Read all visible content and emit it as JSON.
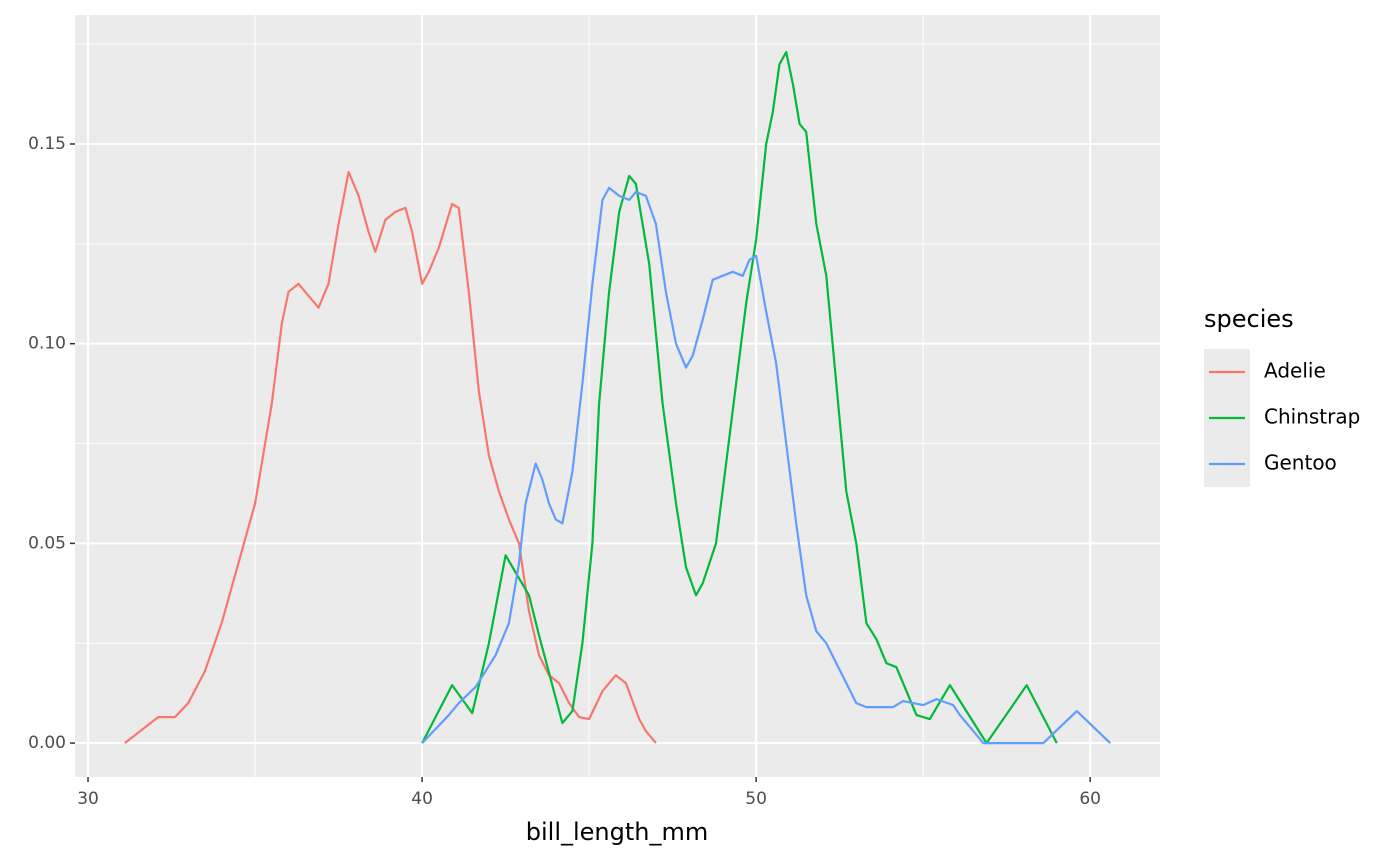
{
  "chart_data": {
    "type": "line",
    "x_label": "bill_length_mm",
    "legend_title": "species",
    "legend_position": "right",
    "grid": true,
    "xlim": [
      29.61,
      62.09
    ],
    "xticks": [
      30,
      40,
      50,
      60
    ],
    "x_minor_ticks": [
      35,
      45,
      55
    ],
    "ylim": [
      -0.0085,
      0.1823
    ],
    "yticks": [
      {
        "value": 0,
        "label": "0.00"
      },
      {
        "value": 0.05,
        "label": "0.05"
      },
      {
        "value": 0.1,
        "label": "0.10"
      },
      {
        "value": 0.15,
        "label": "0.15"
      }
    ],
    "y_minor_ticks": [
      0.025,
      0.075,
      0.125,
      0.175
    ],
    "series": [
      {
        "name": "Adelie",
        "color": "#f8766d",
        "x": [
          31.1,
          32.1,
          32.6,
          33,
          33.5,
          34,
          34.5,
          35,
          35.5,
          35.8,
          36,
          36.3,
          36.6,
          36.9,
          37.2,
          37.5,
          37.8,
          38.1,
          38.4,
          38.6,
          38.9,
          39.2,
          39.5,
          39.7,
          40,
          40.2,
          40.5,
          40.9,
          41.1,
          41.4,
          41.7,
          42,
          42.3,
          42.6,
          42.9,
          43.2,
          43.5,
          43.8,
          44.1,
          44.4,
          44.7,
          45,
          45.4,
          45.8,
          46.1,
          46.5,
          46.7,
          47
        ],
        "values": [
          0,
          0.0065,
          0.0065,
          0.01,
          0.018,
          0.03,
          0.045,
          0.06,
          0.085,
          0.105,
          0.113,
          0.115,
          0.112,
          0.109,
          0.115,
          0.13,
          0.143,
          0.137,
          0.128,
          0.123,
          0.131,
          0.133,
          0.134,
          0.128,
          0.115,
          0.118,
          0.124,
          0.135,
          0.134,
          0.113,
          0.088,
          0.072,
          0.063,
          0.056,
          0.05,
          0.033,
          0.022,
          0.017,
          0.015,
          0.01,
          0.0065,
          0.006,
          0.013,
          0.017,
          0.015,
          0.006,
          0.003,
          0
        ]
      },
      {
        "name": "Chinstrap",
        "color": "#00ba38",
        "x": [
          40,
          40.9,
          41.5,
          42,
          42.5,
          43.2,
          43.5,
          44.2,
          44.5,
          44.8,
          45.1,
          45.3,
          45.6,
          45.9,
          46.2,
          46.4,
          46.8,
          47.2,
          47.6,
          47.9,
          48.2,
          48.4,
          48.8,
          49.1,
          49.4,
          49.7,
          50,
          50.3,
          50.5,
          50.7,
          50.9,
          51.1,
          51.3,
          51.5,
          51.8,
          52.1,
          52.4,
          52.7,
          53,
          53.3,
          53.6,
          53.9,
          54.2,
          54.8,
          55.2,
          55.8,
          56.9,
          58.1,
          59
        ],
        "values": [
          0,
          0.0145,
          0.0075,
          0.025,
          0.047,
          0.037,
          0.027,
          0.005,
          0.008,
          0.025,
          0.05,
          0.085,
          0.113,
          0.133,
          0.142,
          0.14,
          0.12,
          0.085,
          0.06,
          0.044,
          0.037,
          0.04,
          0.05,
          0.07,
          0.09,
          0.11,
          0.126,
          0.15,
          0.158,
          0.17,
          0.173,
          0.165,
          0.155,
          0.153,
          0.13,
          0.117,
          0.09,
          0.063,
          0.05,
          0.03,
          0.026,
          0.02,
          0.019,
          0.007,
          0.006,
          0.0145,
          0,
          0.0145,
          0
        ]
      },
      {
        "name": "Gentoo",
        "color": "#619cff",
        "x": [
          40,
          40.8,
          41.1,
          41.6,
          42.2,
          42.6,
          42.9,
          43.1,
          43.4,
          43.6,
          43.8,
          44,
          44.2,
          44.5,
          44.8,
          45.1,
          45.4,
          45.6,
          45.9,
          46.2,
          46.4,
          46.7,
          47,
          47.3,
          47.6,
          47.9,
          48.1,
          48.4,
          48.7,
          49,
          49.3,
          49.6,
          49.8,
          50,
          50.3,
          50.6,
          50.9,
          51.2,
          51.5,
          51.8,
          52.1,
          52.4,
          52.7,
          53,
          53.3,
          53.6,
          54.1,
          54.4,
          55,
          55.4,
          55.9,
          56.1,
          56.8,
          58.6,
          59.6,
          60.6
        ],
        "values": [
          0,
          0.007,
          0.01,
          0.014,
          0.022,
          0.03,
          0.045,
          0.06,
          0.07,
          0.066,
          0.06,
          0.056,
          0.055,
          0.068,
          0.09,
          0.115,
          0.136,
          0.139,
          0.137,
          0.136,
          0.138,
          0.137,
          0.13,
          0.113,
          0.1,
          0.094,
          0.097,
          0.106,
          0.116,
          0.117,
          0.118,
          0.117,
          0.121,
          0.122,
          0.108,
          0.095,
          0.075,
          0.055,
          0.037,
          0.028,
          0.025,
          0.02,
          0.015,
          0.01,
          0.009,
          0.009,
          0.009,
          0.0105,
          0.0095,
          0.011,
          0.0095,
          0.007,
          0,
          0,
          0.008,
          0
        ]
      }
    ]
  }
}
